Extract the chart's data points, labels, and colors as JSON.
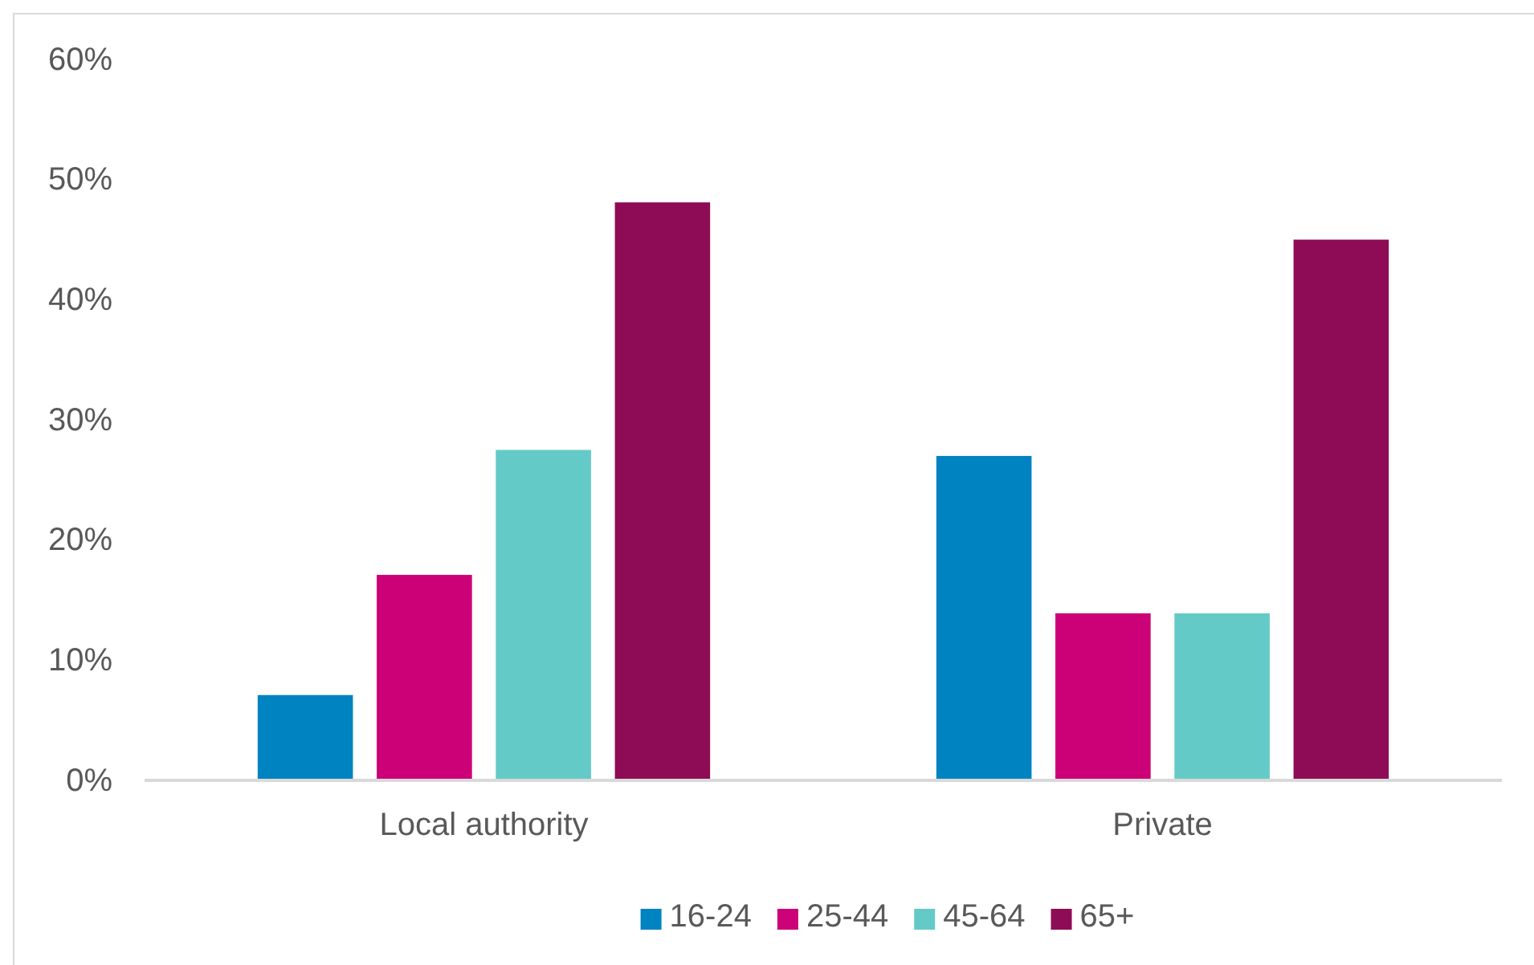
{
  "chart_data": {
    "type": "bar",
    "categories": [
      "Local authority",
      "Private"
    ],
    "series": [
      {
        "name": "16-24",
        "color": "#0083c1",
        "values": [
          7.1,
          27.0
        ]
      },
      {
        "name": "25-44",
        "color": "#cc0077",
        "values": [
          17.1,
          13.9
        ]
      },
      {
        "name": "45-64",
        "color": "#64cac8",
        "values": [
          27.5,
          13.9
        ]
      },
      {
        "name": "65+",
        "color": "#8e0c55",
        "values": [
          48.1,
          45.0
        ]
      }
    ],
    "ylim": [
      0,
      60
    ],
    "yticks": [
      {
        "value": 0,
        "label": "0%"
      },
      {
        "value": 10,
        "label": "10%"
      },
      {
        "value": 20,
        "label": "20%"
      },
      {
        "value": 30,
        "label": "30%"
      },
      {
        "value": 40,
        "label": "40%"
      },
      {
        "value": 50,
        "label": "50%"
      },
      {
        "value": 60,
        "label": "60%"
      }
    ],
    "grid": false,
    "legend": "bottom"
  }
}
